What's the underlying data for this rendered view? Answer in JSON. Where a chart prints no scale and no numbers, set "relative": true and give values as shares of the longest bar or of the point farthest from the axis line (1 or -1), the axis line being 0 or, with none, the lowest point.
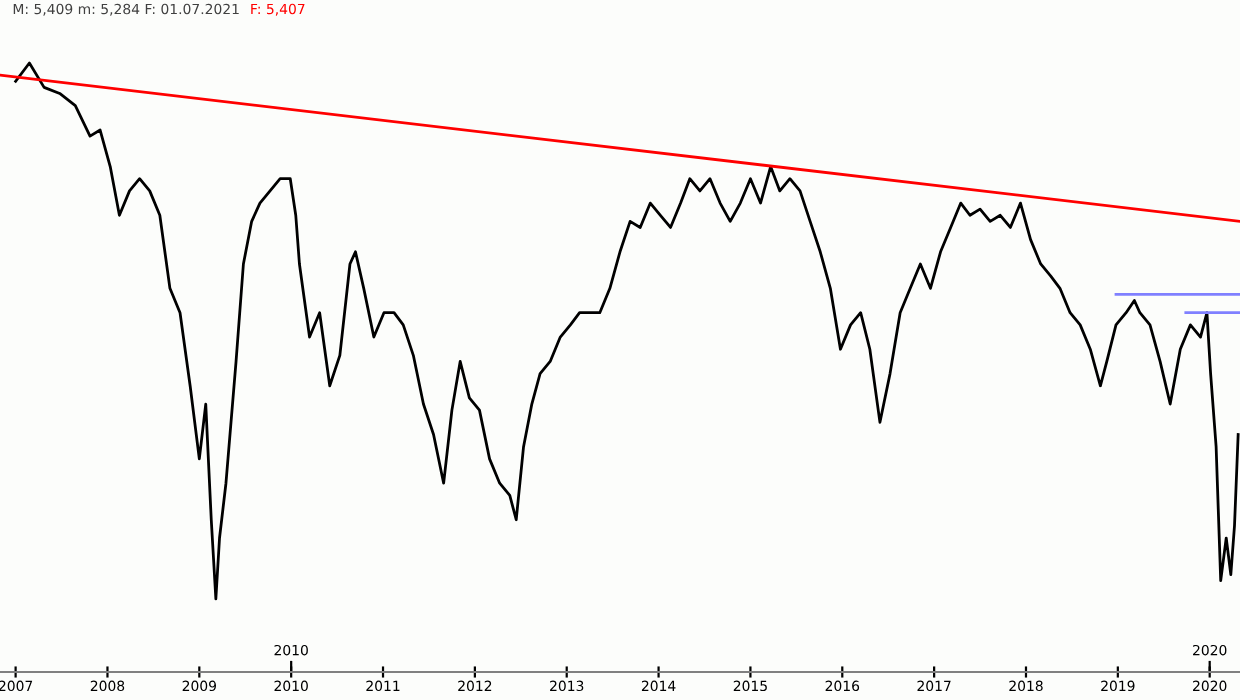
{
  "chart_data": {
    "type": "line",
    "relative": true,
    "grid": false,
    "legend": false,
    "marker": "none",
    "line_style": "solid",
    "annotations": [
      "M: 5,409 m: 5,284 F: 01.07.2021",
      "F: 5,407"
    ],
    "xlim": [
      2006.83,
      2020.33
    ],
    "xticks": [
      2007,
      2008,
      2009,
      2010,
      2011,
      2012,
      2013,
      2014,
      2015,
      2016,
      2017,
      2018,
      2019,
      2020
    ],
    "x2lim": [
      2006.83,
      2020.33
    ],
    "x2ticks": [
      2010,
      2020
    ],
    "series": [
      {
        "color": "#000000",
        "x": [
          2007.0,
          2007.15,
          2007.31,
          2007.48,
          2007.65,
          2007.81,
          2007.92,
          2008.03,
          2008.13,
          2008.24,
          2008.35,
          2008.46,
          2008.57,
          2008.68,
          2008.79,
          2008.9,
          2009.0,
          2009.07,
          2009.13,
          2009.18,
          2009.22,
          2009.29,
          2009.4,
          2009.48,
          2009.57,
          2009.66,
          2009.77,
          2009.88,
          2009.99,
          2010.05,
          2010.09,
          2010.2,
          2010.31,
          2010.42,
          2010.53,
          2010.64,
          2010.7,
          2010.79,
          2010.9,
          2011.01,
          2011.12,
          2011.22,
          2011.33,
          2011.44,
          2011.55,
          2011.66,
          2011.75,
          2011.84,
          2011.94,
          2012.05,
          2012.16,
          2012.27,
          2012.38,
          2012.45,
          2012.53,
          2012.62,
          2012.71,
          2012.82,
          2012.93,
          2013.04,
          2013.14,
          2013.25,
          2013.36,
          2013.47,
          2013.58,
          2013.69,
          2013.8,
          2013.91,
          2014.02,
          2014.13,
          2014.24,
          2014.34,
          2014.45,
          2014.56,
          2014.67,
          2014.78,
          2014.89,
          2015.0,
          2015.11,
          2015.22,
          2015.32,
          2015.43,
          2015.54,
          2015.65,
          2015.76,
          2015.87,
          2015.98,
          2016.09,
          2016.2,
          2016.3,
          2016.41,
          2016.52,
          2016.63,
          2016.74,
          2016.85,
          2016.96,
          2017.07,
          2017.18,
          2017.29,
          2017.39,
          2017.5,
          2017.61,
          2017.72,
          2017.83,
          2017.94,
          2018.05,
          2018.16,
          2018.27,
          2018.37,
          2018.48,
          2018.59,
          2018.7,
          2018.81,
          2018.88,
          2018.98,
          2019.09,
          2019.18,
          2019.24,
          2019.35,
          2019.46,
          2019.57,
          2019.68,
          2019.79,
          2019.9,
          2019.97,
          2020.01,
          2020.05,
          2020.07,
          2020.12,
          2020.18,
          2020.23,
          2020.27,
          2020.31
        ],
        "values": [
          0.97,
          1.0,
          0.96,
          0.95,
          0.93,
          0.88,
          0.89,
          0.83,
          0.75,
          0.79,
          0.81,
          0.79,
          0.75,
          0.63,
          0.59,
          0.47,
          0.35,
          0.44,
          0.25,
          0.12,
          0.22,
          0.31,
          0.51,
          0.67,
          0.74,
          0.77,
          0.79,
          0.81,
          0.81,
          0.75,
          0.67,
          0.55,
          0.59,
          0.47,
          0.52,
          0.67,
          0.69,
          0.63,
          0.55,
          0.59,
          0.59,
          0.57,
          0.52,
          0.44,
          0.39,
          0.31,
          0.43,
          0.51,
          0.45,
          0.43,
          0.35,
          0.31,
          0.29,
          0.25,
          0.37,
          0.44,
          0.49,
          0.51,
          0.55,
          0.57,
          0.59,
          0.59,
          0.59,
          0.63,
          0.69,
          0.74,
          0.73,
          0.77,
          0.75,
          0.73,
          0.77,
          0.81,
          0.79,
          0.81,
          0.77,
          0.74,
          0.77,
          0.81,
          0.77,
          0.83,
          0.79,
          0.81,
          0.79,
          0.74,
          0.69,
          0.63,
          0.53,
          0.57,
          0.59,
          0.53,
          0.41,
          0.49,
          0.59,
          0.63,
          0.67,
          0.63,
          0.69,
          0.73,
          0.77,
          0.75,
          0.76,
          0.74,
          0.75,
          0.73,
          0.77,
          0.71,
          0.67,
          0.65,
          0.63,
          0.59,
          0.57,
          0.53,
          0.47,
          0.51,
          0.57,
          0.59,
          0.61,
          0.59,
          0.57,
          0.51,
          0.44,
          0.53,
          0.57,
          0.55,
          0.59,
          0.49,
          0.41,
          0.37,
          0.15,
          0.22,
          0.16,
          0.24,
          0.39
        ]
      },
      {
        "color": "#ff0000",
        "x": [
          2006.83,
          2020.33
        ],
        "values": [
          0.98,
          0.74
        ]
      },
      {
        "color": "#8080ff",
        "x": [
          2018.98,
          2020.33
        ],
        "values": [
          0.62,
          0.62
        ]
      },
      {
        "color": "#8080ff",
        "x": [
          2019.74,
          2020.33
        ],
        "values": [
          0.59,
          0.59
        ]
      }
    ]
  }
}
